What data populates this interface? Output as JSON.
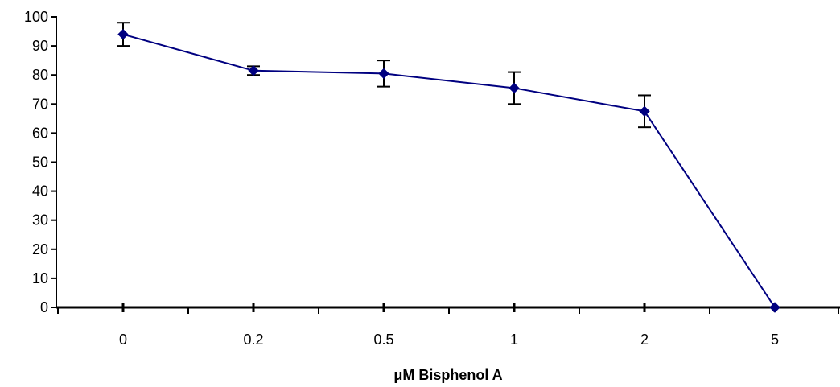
{
  "chart_data": {
    "type": "line",
    "title": "",
    "xlabel": "μM Bisphenol A",
    "ylabel": "",
    "categories": [
      "0",
      "0.2",
      "0.5",
      "1",
      "2",
      "5"
    ],
    "ylim": [
      0,
      100
    ],
    "yticks": [
      0,
      10,
      20,
      30,
      40,
      50,
      60,
      70,
      80,
      90,
      100
    ],
    "grid": false,
    "legend": "none",
    "series": [
      {
        "values": [
          94,
          81.5,
          80.5,
          75.5,
          67.5,
          0
        ],
        "error": [
          4,
          1.5,
          4.5,
          5.5,
          5.5,
          0
        ]
      }
    ],
    "colors": {
      "series": "#000080",
      "axis": "#000000"
    }
  }
}
